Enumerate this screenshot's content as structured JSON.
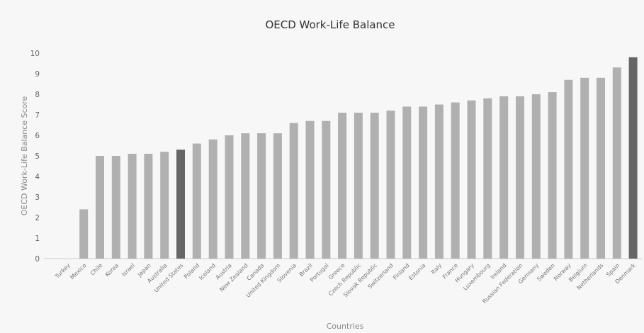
{
  "chart_data": {
    "type": "bar",
    "title": "OECD Work-Life Balance",
    "xlabel": "Countries",
    "ylabel": "OECD Work-Life Balance Score",
    "ylim": [
      0,
      10
    ],
    "yticks": [
      0,
      1,
      2,
      3,
      4,
      5,
      6,
      7,
      8,
      9,
      10
    ],
    "grid": false,
    "legend": "none",
    "categories": [
      "Turkey",
      "Mexico",
      "Chile",
      "Korea",
      "Israel",
      "Japan",
      "Australia",
      "United States",
      "Poland",
      "Iceland",
      "Austria",
      "New Zealand",
      "Canada",
      "United Kingdom",
      "Slovenia",
      "Brazil",
      "Portugal",
      "Greece",
      "Czech Republic",
      "Slovak Republic",
      "Switzerland",
      "Finland",
      "Estonia",
      "Italy",
      "France",
      "Hungary",
      "Luxembourg",
      "Ireland",
      "Russian Federation",
      "Germany",
      "Sweden",
      "Norway",
      "Belgium",
      "Netherlands",
      "Spain",
      "Denmark"
    ],
    "values": [
      0,
      2.4,
      5.0,
      5.0,
      5.1,
      5.1,
      5.2,
      5.3,
      5.6,
      5.8,
      6.0,
      6.1,
      6.1,
      6.1,
      6.6,
      6.7,
      6.7,
      7.1,
      7.1,
      7.1,
      7.2,
      7.4,
      7.4,
      7.5,
      7.6,
      7.7,
      7.8,
      7.9,
      7.9,
      8.0,
      8.1,
      8.7,
      8.8,
      8.8,
      9.3,
      9.8
    ],
    "highlighted": [
      "United States",
      "Denmark"
    ],
    "colors": {
      "bar": "#b0b0b0",
      "highlight": "#666666",
      "background": "#f7f7f7"
    }
  }
}
